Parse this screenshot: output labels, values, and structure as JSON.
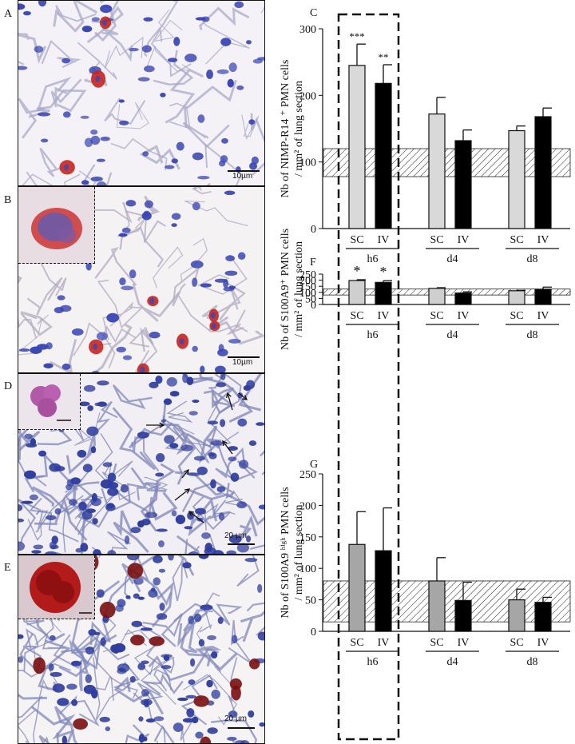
{
  "panel_labels": {
    "a": "A",
    "b": "B",
    "c": "C",
    "d": "D",
    "e": "E",
    "f": "F",
    "g": "G"
  },
  "scale_bars": {
    "a": "10µm",
    "b": "10µm",
    "d": "20 µm",
    "e": "20 µm"
  },
  "colors": {
    "sc_top": "#d9d9d9",
    "sc_bottom": "#a6a6a6",
    "iv": "#000000",
    "nucleus": "#3a46b4",
    "stain_red": "#c8231e",
    "stain_darkred": "#7a0e10"
  },
  "chart_data": [
    {
      "panel": "C",
      "type": "bar",
      "ylabel_line1": "Nb of NIMP-R14 ⁺ PMN cells",
      "ylabel_line2": "/ mm² of lung section",
      "ylim": [
        0,
        300
      ],
      "yticks": [
        "0",
        "100",
        "200",
        "300"
      ],
      "groups": [
        "h6",
        "d4",
        "d8"
      ],
      "bar_labels": [
        "SC",
        "IV"
      ],
      "series": [
        {
          "name": "SC",
          "values": [
            245,
            172,
            147
          ],
          "errors": [
            32,
            25,
            7
          ]
        },
        {
          "name": "IV",
          "values": [
            218,
            132,
            168
          ],
          "errors": [
            28,
            16,
            13
          ]
        }
      ],
      "reference_band": [
        78,
        120
      ],
      "significance": [
        "***",
        "**"
      ]
    },
    {
      "panel": "F",
      "type": "bar",
      "ylabel_line1": "Nb of S100A9⁺ PMN cells",
      "ylabel_line2": "/ mm² of lung section",
      "ylim": [
        0,
        250
      ],
      "yticks": [
        "0",
        "50",
        "100",
        "150",
        "200",
        "250"
      ],
      "groups": [
        "h6",
        "d4",
        "d8"
      ],
      "bar_labels": [
        "SC",
        "IV"
      ],
      "series": [
        {
          "name": "SC",
          "values": [
            197,
            133,
            113
          ],
          "errors": [
            7,
            5,
            3
          ]
        },
        {
          "name": "IV",
          "values": [
            182,
            94,
            125
          ],
          "errors": [
            14,
            10,
            18
          ]
        }
      ],
      "reference_band": [
        78,
        127
      ],
      "significance": [
        "*",
        "*"
      ]
    },
    {
      "panel": "G",
      "type": "bar",
      "ylabel_line1": "Nb of S100A9 ʰⁱᵍʰ PMN cells",
      "ylabel_line2": "/ mm² of lung section",
      "ylim": [
        0,
        250
      ],
      "yticks": [
        "0",
        "50",
        "100",
        "150",
        "200",
        "250"
      ],
      "groups": [
        "h6",
        "d4",
        "d8"
      ],
      "bar_labels": [
        "SC",
        "IV"
      ],
      "series": [
        {
          "name": "SC",
          "values": [
            138,
            80,
            50
          ],
          "errors": [
            52,
            37,
            17
          ]
        },
        {
          "name": "IV",
          "values": [
            128,
            49,
            46
          ],
          "errors": [
            68,
            29,
            8
          ]
        }
      ],
      "reference_band": [
        15,
        80
      ],
      "significance": [
        "",
        ""
      ]
    }
  ]
}
